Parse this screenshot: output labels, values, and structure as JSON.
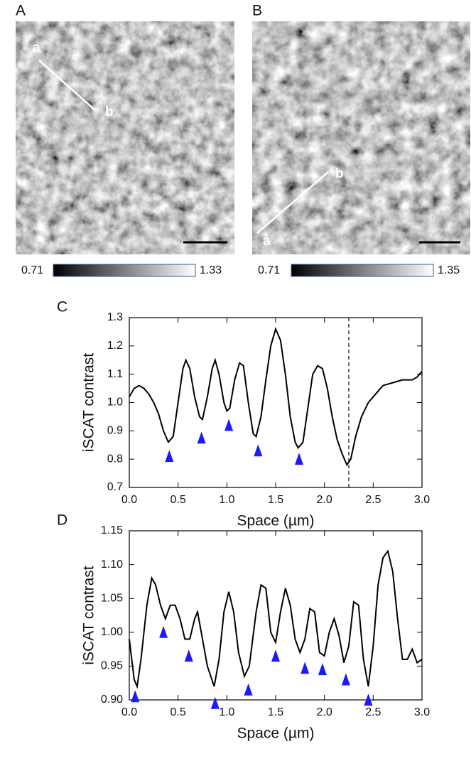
{
  "images": [
    {
      "label": "A",
      "start": "a",
      "end": "b",
      "colorbar": [
        "0.71",
        "1.33"
      ]
    },
    {
      "label": "B",
      "start": "a",
      "end": "b",
      "colorbar": [
        "0.71",
        "1.35"
      ]
    }
  ],
  "chart_data": [
    {
      "type": "line",
      "panel_label": "C",
      "xlabel": "Space (µm)",
      "ylabel": "iSCAT contrast",
      "color": "#000000",
      "x": [
        0.0,
        0.05,
        0.1,
        0.15,
        0.2,
        0.25,
        0.3,
        0.35,
        0.4,
        0.45,
        0.5,
        0.55,
        0.58,
        0.62,
        0.67,
        0.72,
        0.75,
        0.8,
        0.85,
        0.88,
        0.92,
        0.97,
        1.0,
        1.03,
        1.08,
        1.13,
        1.17,
        1.22,
        1.27,
        1.3,
        1.35,
        1.4,
        1.45,
        1.5,
        1.55,
        1.6,
        1.65,
        1.7,
        1.73,
        1.78,
        1.83,
        1.88,
        1.93,
        1.98,
        2.03,
        2.08,
        2.13,
        2.18,
        2.23,
        2.27,
        2.32,
        2.38,
        2.45,
        2.55,
        2.6,
        2.7,
        2.8,
        2.9,
        2.95,
        3.0
      ],
      "values": [
        1.02,
        1.05,
        1.06,
        1.05,
        1.03,
        1.0,
        0.96,
        0.9,
        0.86,
        0.88,
        1.0,
        1.12,
        1.15,
        1.12,
        1.02,
        0.95,
        0.94,
        1.02,
        1.12,
        1.15,
        1.1,
        1.0,
        0.97,
        0.98,
        1.08,
        1.14,
        1.13,
        1.0,
        0.89,
        0.88,
        0.95,
        1.08,
        1.2,
        1.26,
        1.22,
        1.1,
        0.95,
        0.86,
        0.84,
        0.86,
        0.98,
        1.1,
        1.13,
        1.12,
        1.05,
        0.95,
        0.87,
        0.82,
        0.78,
        0.8,
        0.88,
        0.95,
        1.0,
        1.04,
        1.06,
        1.07,
        1.08,
        1.08,
        1.09,
        1.11
      ],
      "markers": {
        "color": "#1a1aff",
        "x": [
          0.41,
          0.74,
          1.02,
          1.32,
          1.74
        ],
        "values": [
          0.81,
          0.875,
          0.92,
          0.83,
          0.8
        ]
      },
      "vlines": [
        2.25
      ],
      "xlim": [
        0,
        3
      ],
      "xticks": [
        {
          "value": 0,
          "label": "0.0"
        },
        0.5,
        {
          "value": 1,
          "label": "1.0"
        },
        1.5,
        {
          "value": 2,
          "label": "2.0"
        },
        2.5,
        {
          "value": 3,
          "label": "3.0"
        }
      ],
      "ylim": [
        0.7,
        1.3
      ],
      "yticks": [
        0.7,
        0.8,
        0.9,
        {
          "value": 1,
          "label": "1.0"
        },
        1.1,
        1.2,
        1.3
      ]
    },
    {
      "type": "line",
      "panel_label": "D",
      "xlabel": "Space (µm)",
      "ylabel": "iSCAT contrast",
      "color": "#000000",
      "x": [
        0.0,
        0.05,
        0.08,
        0.12,
        0.18,
        0.23,
        0.27,
        0.32,
        0.37,
        0.42,
        0.47,
        0.52,
        0.57,
        0.62,
        0.67,
        0.7,
        0.75,
        0.8,
        0.87,
        0.92,
        0.97,
        1.02,
        1.07,
        1.12,
        1.18,
        1.23,
        1.3,
        1.35,
        1.4,
        1.45,
        1.5,
        1.55,
        1.6,
        1.65,
        1.7,
        1.75,
        1.8,
        1.85,
        1.9,
        1.95,
        2.0,
        2.05,
        2.1,
        2.15,
        2.2,
        2.25,
        2.3,
        2.35,
        2.4,
        2.45,
        2.5,
        2.55,
        2.6,
        2.65,
        2.7,
        2.75,
        2.8,
        2.85,
        2.9,
        2.95,
        3.0
      ],
      "values": [
        0.99,
        0.93,
        0.92,
        0.96,
        1.04,
        1.08,
        1.07,
        1.04,
        1.02,
        1.04,
        1.04,
        1.02,
        0.99,
        0.99,
        1.02,
        1.03,
        0.99,
        0.95,
        0.92,
        0.96,
        1.03,
        1.06,
        1.03,
        0.97,
        0.935,
        0.95,
        1.03,
        1.07,
        1.065,
        1.0,
        0.985,
        1.03,
        1.065,
        1.04,
        0.99,
        0.97,
        0.99,
        1.035,
        1.03,
        0.97,
        0.965,
        1.0,
        1.02,
        0.995,
        0.955,
        0.98,
        1.045,
        1.04,
        0.96,
        0.92,
        0.98,
        1.07,
        1.11,
        1.12,
        1.09,
        1.02,
        0.96,
        0.96,
        0.975,
        0.955,
        0.96
      ],
      "markers": {
        "color": "#1a1aff",
        "x": [
          0.06,
          0.35,
          0.61,
          0.88,
          1.22,
          1.5,
          1.8,
          1.98,
          2.22,
          2.45
        ],
        "values": [
          0.905,
          1.0,
          0.965,
          0.895,
          0.915,
          0.965,
          0.947,
          0.945,
          0.93,
          0.9
        ]
      },
      "xlim": [
        0,
        3
      ],
      "xticks": [
        {
          "value": 0,
          "label": "0.0"
        },
        0.5,
        {
          "value": 1,
          "label": "1.0"
        },
        1.5,
        {
          "value": 2,
          "label": "2.0"
        },
        2.5,
        {
          "value": 3,
          "label": "3.0"
        }
      ],
      "ylim": [
        0.9,
        1.15
      ],
      "yticks": [
        {
          "value": 0.9,
          "label": "0.90"
        },
        0.95,
        {
          "value": 1,
          "label": "1.00"
        },
        1.05,
        {
          "value": 1.1,
          "label": "1.10"
        },
        1.15
      ]
    }
  ]
}
